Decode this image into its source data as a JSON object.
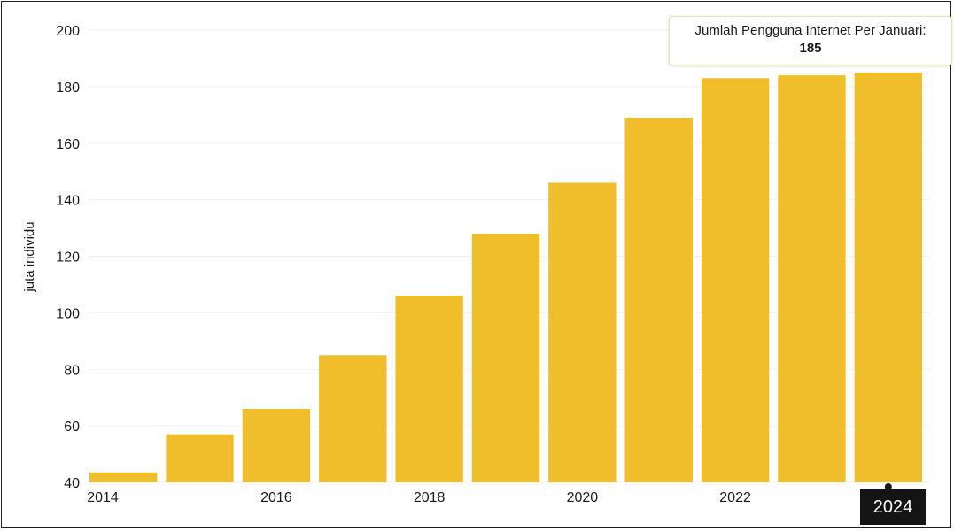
{
  "chart_data": {
    "type": "bar",
    "categories": [
      "2014",
      "2015",
      "2016",
      "2017",
      "2018",
      "2019",
      "2020",
      "2021",
      "2022",
      "2023",
      "2024"
    ],
    "values": [
      43.5,
      57,
      66,
      85,
      106,
      128,
      146,
      169,
      183,
      184,
      185
    ],
    "x_tick_labels": [
      "2014",
      "2016",
      "2018",
      "2020",
      "2022",
      "2024"
    ],
    "y_ticks": [
      40,
      60,
      80,
      100,
      120,
      140,
      160,
      180,
      200
    ],
    "ylim": [
      40,
      200
    ],
    "ylabel": "juta individu",
    "xlabel": "",
    "title": "",
    "grid": true,
    "bar_color": "#f0bd2b",
    "tooltip": {
      "label": "Jumlah Pengguna Internet Per Januari:",
      "value": "185"
    },
    "highlighted_category": "2024"
  }
}
